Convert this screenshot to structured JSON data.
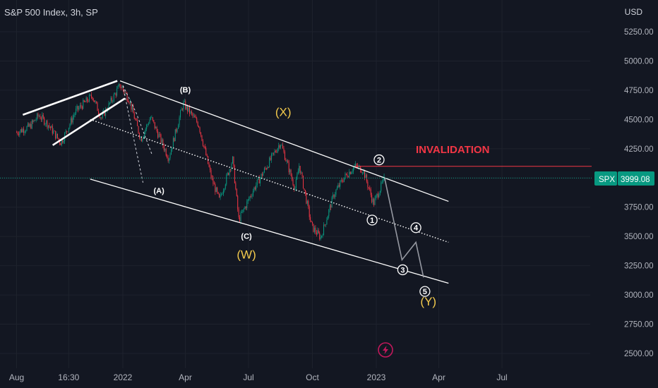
{
  "header": {
    "title": "S&P 500 Index, 3h, SP",
    "currency": "USD"
  },
  "price_tag": {
    "symbol": "SPX",
    "value": "3999.08",
    "color": "#089981"
  },
  "invalidation_label": "INVALIDATION",
  "colors": {
    "background": "#131722",
    "up": "#089981",
    "down": "#f23645",
    "invalidation": "#f23645",
    "wave_gold": "#f2c94c",
    "lightning": "#c2185b"
  },
  "lightning_icon": "lightning-icon",
  "chart_data": {
    "type": "candlestick",
    "title": "S&P 500 Index, 3h, SP",
    "y_axis": {
      "unit": "USD",
      "ticks": [
        "5250.00",
        "5000.00",
        "4750.00",
        "4500.00",
        "4250.00",
        "4000.00",
        "3750.00",
        "3500.00",
        "3250.00",
        "3000.00",
        "2750.00",
        "2500.00"
      ],
      "range": [
        2400,
        5450
      ],
      "current_price": 3999.08
    },
    "x_axis": {
      "ticks": [
        "Aug",
        "16:30",
        "2022",
        "Apr",
        "Jul",
        "Oct",
        "2023",
        "Apr",
        "Jul"
      ],
      "range": [
        "2021-08-01",
        "2023-09-01"
      ]
    },
    "price_path": [
      [
        "2021-08-01",
        4390
      ],
      [
        "2021-08-20",
        4440
      ],
      [
        "2021-09-02",
        4536
      ],
      [
        "2021-09-15",
        4460
      ],
      [
        "2021-10-04",
        4300
      ],
      [
        "2021-10-25",
        4570
      ],
      [
        "2021-11-18",
        4705
      ],
      [
        "2021-12-01",
        4510
      ],
      [
        "2021-12-28",
        4793
      ],
      [
        "2022-01-10",
        4670
      ],
      [
        "2022-01-27",
        4330
      ],
      [
        "2022-02-10",
        4520
      ],
      [
        "2022-03-08",
        4170
      ],
      [
        "2022-03-29",
        4637
      ],
      [
        "2022-04-20",
        4460
      ],
      [
        "2022-05-09",
        3990
      ],
      [
        "2022-05-20",
        3810
      ],
      [
        "2022-06-08",
        4160
      ],
      [
        "2022-06-17",
        3640
      ],
      [
        "2022-07-08",
        3900
      ],
      [
        "2022-08-16",
        4305
      ],
      [
        "2022-09-06",
        3910
      ],
      [
        "2022-09-12",
        4110
      ],
      [
        "2022-09-30",
        3585
      ],
      [
        "2022-10-13",
        3490
      ],
      [
        "2022-11-01",
        3860
      ],
      [
        "2022-11-15",
        4000
      ],
      [
        "2022-12-01",
        4100
      ],
      [
        "2022-12-13",
        4070
      ],
      [
        "2022-12-28",
        3780
      ],
      [
        "2023-01-13",
        3999
      ]
    ],
    "projection": [
      [
        "2023-01-13",
        3999
      ],
      [
        "2023-02-07",
        3300
      ],
      [
        "2023-02-27",
        3450
      ],
      [
        "2023-03-10",
        3150
      ]
    ],
    "invalidation_level": 4100,
    "channels": [
      {
        "name": "upper",
        "points": [
          [
            "2021-12-28",
            4830
          ],
          [
            "2023-04-15",
            3800
          ]
        ]
      },
      {
        "name": "middle",
        "points": [
          [
            "2021-11-15",
            4500
          ],
          [
            "2023-04-15",
            3450
          ]
        ]
      },
      {
        "name": "lower",
        "points": [
          [
            "2021-11-15",
            3990
          ],
          [
            "2023-04-15",
            3100
          ]
        ]
      }
    ],
    "wedge_lines": [
      {
        "points": [
          [
            "2021-08-10",
            4540
          ],
          [
            "2021-12-24",
            4830
          ]
        ]
      },
      {
        "points": [
          [
            "2021-09-22",
            4280
          ],
          [
            "2022-01-04",
            4680
          ]
        ]
      }
    ],
    "dashed_paths": [
      {
        "points": [
          [
            "2022-01-01",
            4790
          ],
          [
            "2022-01-20",
            4560
          ],
          [
            "2022-02-12",
            4200
          ]
        ]
      },
      {
        "points": [
          [
            "2022-01-01",
            4790
          ],
          [
            "2022-01-18",
            4300
          ],
          [
            "2022-01-30",
            3960
          ]
        ]
      }
    ],
    "wave_labels": [
      {
        "text": "(A)",
        "date": "2022-02-22",
        "price": 3870,
        "style": "white"
      },
      {
        "text": "(B)",
        "date": "2022-04-01",
        "price": 4730,
        "style": "white"
      },
      {
        "text": "(C)",
        "date": "2022-06-28",
        "price": 3480,
        "style": "white"
      },
      {
        "text": "(W)",
        "date": "2022-06-28",
        "price": 3310,
        "style": "gold"
      },
      {
        "text": "(X)",
        "date": "2022-08-20",
        "price": 4530,
        "style": "gold"
      },
      {
        "text": "(Y)",
        "date": "2023-03-17",
        "price": 2910,
        "style": "gold"
      }
    ],
    "circled_labels": [
      {
        "text": "1",
        "date": "2022-12-26",
        "price": 3640
      },
      {
        "text": "2",
        "date": "2023-01-05",
        "price": 4155
      },
      {
        "text": "3",
        "date": "2023-02-08",
        "price": 3215
      },
      {
        "text": "4",
        "date": "2023-02-27",
        "price": 3575
      },
      {
        "text": "5",
        "date": "2023-03-12",
        "price": 3030
      }
    ]
  }
}
